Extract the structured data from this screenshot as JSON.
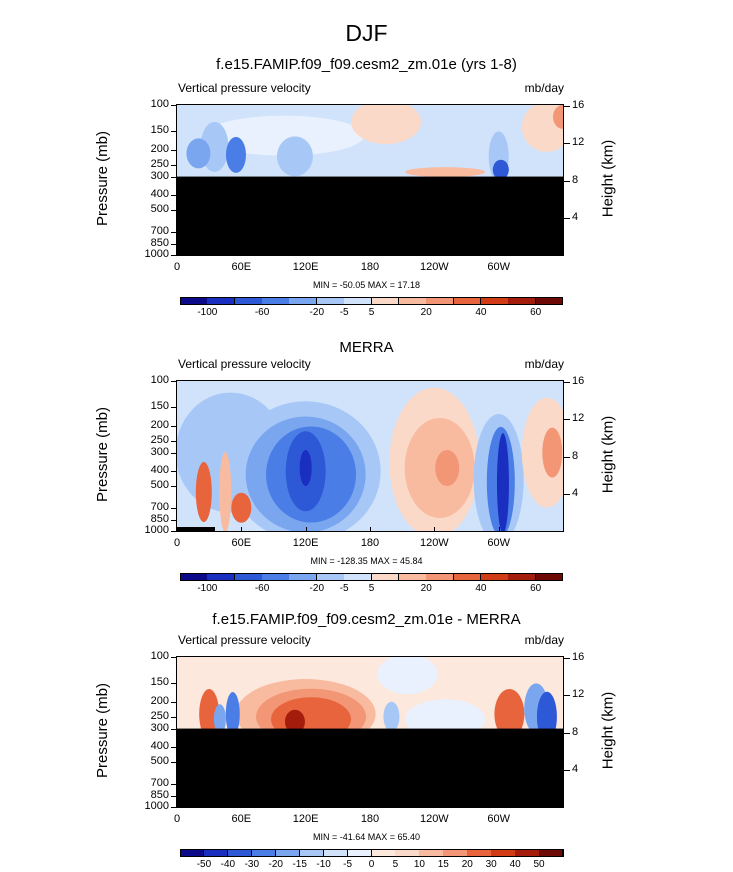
{
  "title": "DJF",
  "panels": [
    {
      "id": "model",
      "title": "f.e15.FAMIP.f09_f09.cesm2_zm.01e (yrs 1-8)",
      "left_label": "Vertical pressure velocity",
      "right_label": "mb/day",
      "ylabel": "Pressure (mb)",
      "ylabel_right": "Height (km)",
      "stats": "MIN = -50.05  MAX =  17.18",
      "colorbar": "cb1"
    },
    {
      "id": "obs",
      "title": "MERRA",
      "left_label": "Vertical pressure velocity",
      "right_label": "mb/day",
      "ylabel": "Pressure (mb)",
      "ylabel_right": "Height (km)",
      "stats": "MIN = -128.35  MAX =  45.84",
      "colorbar": "cb1"
    },
    {
      "id": "diff",
      "title": "f.e15.FAMIP.f09_f09.cesm2_zm.01e - MERRA",
      "left_label": "Vertical pressure velocity",
      "right_label": "mb/day",
      "ylabel": "Pressure (mb)",
      "ylabel_right": "Height (km)",
      "stats": "MIN = -41.64  MAX =  65.40",
      "colorbar": "cb2"
    }
  ],
  "chart_data": {
    "type": "heatmap",
    "x_ticks": [
      "0",
      "60E",
      "120E",
      "180",
      "120W",
      "60W"
    ],
    "x_tick_values": [
      0,
      60,
      120,
      180,
      240,
      300
    ],
    "x_range": [
      0,
      360
    ],
    "y_ticks": [
      100,
      150,
      200,
      250,
      300,
      400,
      500,
      700,
      850,
      1000
    ],
    "y_range_mb": [
      1000,
      100
    ],
    "y_right_ticks": [
      16,
      12,
      8,
      4
    ],
    "masked_below_mb": 300,
    "colorbars": {
      "cb1": {
        "colors": [
          "#0d0a8a",
          "#1a2fbf",
          "#2d58d6",
          "#4a7ee6",
          "#7aa6f0",
          "#a7c8f7",
          "#d1e3fb",
          "#fbd9c9",
          "#f8bba0",
          "#f29675",
          "#e8643c",
          "#d13c16",
          "#a41d0c",
          "#6e0a06"
        ],
        "labels": [
          "-100",
          "-60",
          "-20",
          "-5",
          "5",
          "20",
          "40",
          "60"
        ],
        "label_after_box": [
          1,
          3,
          5,
          6,
          7,
          9,
          11,
          13
        ]
      },
      "cb2": {
        "colors": [
          "#0d0a8a",
          "#1a2fbf",
          "#2d58d6",
          "#4a7ee6",
          "#7aa6f0",
          "#a7c8f7",
          "#d1e3fb",
          "#e8f1fd",
          "#fde8dd",
          "#fbd9c9",
          "#f8bba0",
          "#f29675",
          "#e8643c",
          "#d13c16",
          "#a41d0c",
          "#6e0a06"
        ],
        "labels": [
          "-50",
          "-40",
          "-30",
          "-20",
          "-15",
          "-10",
          "-5",
          "0",
          "5",
          "10",
          "15",
          "20",
          "30",
          "40",
          "50"
        ],
        "label_after_box": [
          1,
          2,
          3,
          4,
          5,
          6,
          7,
          8,
          9,
          10,
          11,
          12,
          13,
          14,
          15
        ]
      }
    }
  }
}
